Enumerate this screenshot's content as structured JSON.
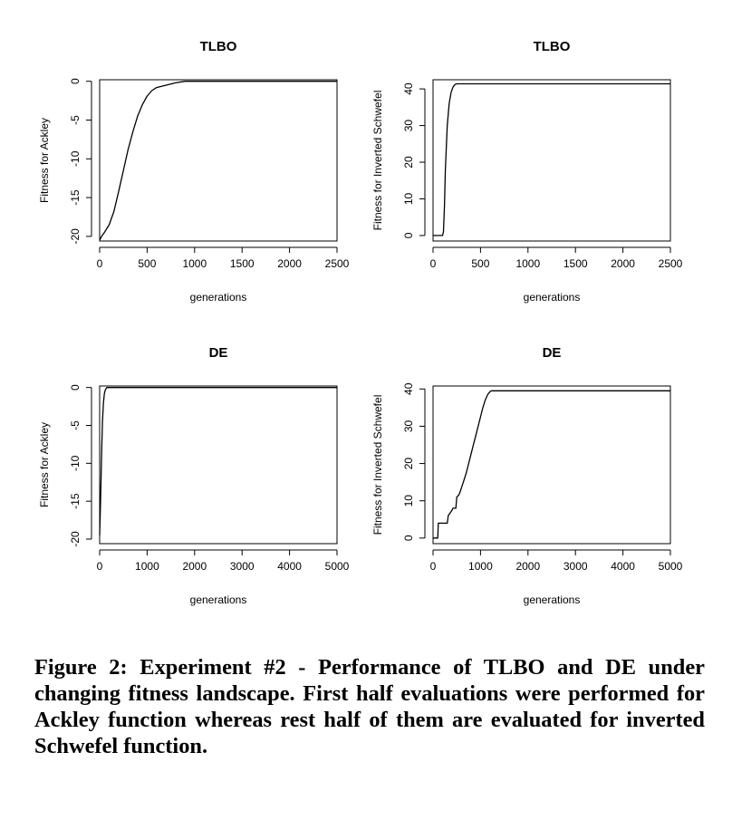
{
  "chart_data": [
    {
      "type": "line",
      "title": "TLBO",
      "xlabel": "generations",
      "ylabel": "Fitness for Ackley",
      "xlim": [
        0,
        2500
      ],
      "ylim": [
        -20.6,
        0.2
      ],
      "xticks": [
        0,
        500,
        1000,
        1500,
        2000,
        2500
      ],
      "yticks": [
        -20,
        -15,
        -10,
        -5,
        0
      ],
      "grid": false,
      "series": [
        {
          "x": [
            0,
            20,
            50,
            100,
            150,
            200,
            250,
            300,
            350,
            400,
            450,
            500,
            550,
            600,
            700,
            800,
            900,
            1000,
            1500,
            2000,
            2500
          ],
          "y": [
            -20.5,
            -20.0,
            -19.5,
            -18.5,
            -16.8,
            -14.2,
            -11.5,
            -8.8,
            -6.5,
            -4.5,
            -3.0,
            -1.9,
            -1.2,
            -0.8,
            -0.5,
            -0.2,
            0.0,
            0.0,
            0.0,
            0.0,
            0.0
          ]
        }
      ]
    },
    {
      "type": "line",
      "title": "TLBO",
      "xlabel": "generations",
      "ylabel": "Fitness for Inverted Schwefel",
      "xlim": [
        0,
        2500
      ],
      "ylim": [
        -1.5,
        42.5
      ],
      "xticks": [
        0,
        500,
        1000,
        1500,
        2000,
        2500
      ],
      "yticks": [
        0,
        10,
        20,
        30,
        40
      ],
      "grid": false,
      "series": [
        {
          "x": [
            0,
            100,
            110,
            120,
            130,
            150,
            170,
            190,
            210,
            230,
            250,
            300,
            500,
            1000,
            1500,
            2000,
            2500
          ],
          "y": [
            0.0,
            0.0,
            1.0,
            8.0,
            18.0,
            30.0,
            36.0,
            39.0,
            40.5,
            41.2,
            41.4,
            41.4,
            41.4,
            41.4,
            41.4,
            41.4,
            41.4
          ]
        }
      ]
    },
    {
      "type": "line",
      "title": "DE",
      "xlabel": "generations",
      "ylabel": "Fitness for Ackley",
      "xlim": [
        0,
        5000
      ],
      "ylim": [
        -20.6,
        0.2
      ],
      "xticks": [
        0,
        1000,
        2000,
        3000,
        4000,
        5000
      ],
      "yticks": [
        -20,
        -15,
        -10,
        -5,
        0
      ],
      "grid": false,
      "series": [
        {
          "x": [
            0,
            20,
            40,
            60,
            80,
            100,
            120,
            150,
            200,
            1000,
            2000,
            3000,
            4000,
            5000
          ],
          "y": [
            -19.5,
            -15.0,
            -9.0,
            -4.5,
            -2.0,
            -0.8,
            -0.3,
            0.0,
            0.0,
            0.0,
            0.0,
            0.0,
            0.0,
            0.0
          ]
        }
      ]
    },
    {
      "type": "line",
      "title": "DE",
      "xlabel": "generations",
      "ylabel": "Fitness for Inverted Schwefel",
      "xlim": [
        0,
        5000
      ],
      "ylim": [
        -1.5,
        40.8
      ],
      "xticks": [
        0,
        1000,
        2000,
        3000,
        4000,
        5000
      ],
      "yticks": [
        0,
        10,
        20,
        30,
        40
      ],
      "grid": false,
      "series": [
        {
          "x": [
            0,
            100,
            110,
            300,
            320,
            400,
            420,
            480,
            500,
            540,
            560,
            600,
            650,
            700,
            750,
            800,
            850,
            900,
            950,
            1000,
            1050,
            1100,
            1150,
            1200,
            1230,
            1300,
            2000,
            3000,
            4000,
            5000
          ],
          "y": [
            0.0,
            0.0,
            4.0,
            4.0,
            6.0,
            7.5,
            8.0,
            8.0,
            11.0,
            11.5,
            12.0,
            13.5,
            15.5,
            17.5,
            20.0,
            22.5,
            25.0,
            27.5,
            30.0,
            32.5,
            35.0,
            37.0,
            38.5,
            39.3,
            39.5,
            39.5,
            39.5,
            39.5,
            39.5,
            39.5
          ]
        }
      ]
    }
  ],
  "caption": {
    "label": "Figure 2:",
    "text": "Experiment #2 - Performance of TLBO and DE under changing fitness landscape.  First half evaluations were performed for Ackley function whereas rest half of them are evaluated for inverted Schwefel function."
  }
}
